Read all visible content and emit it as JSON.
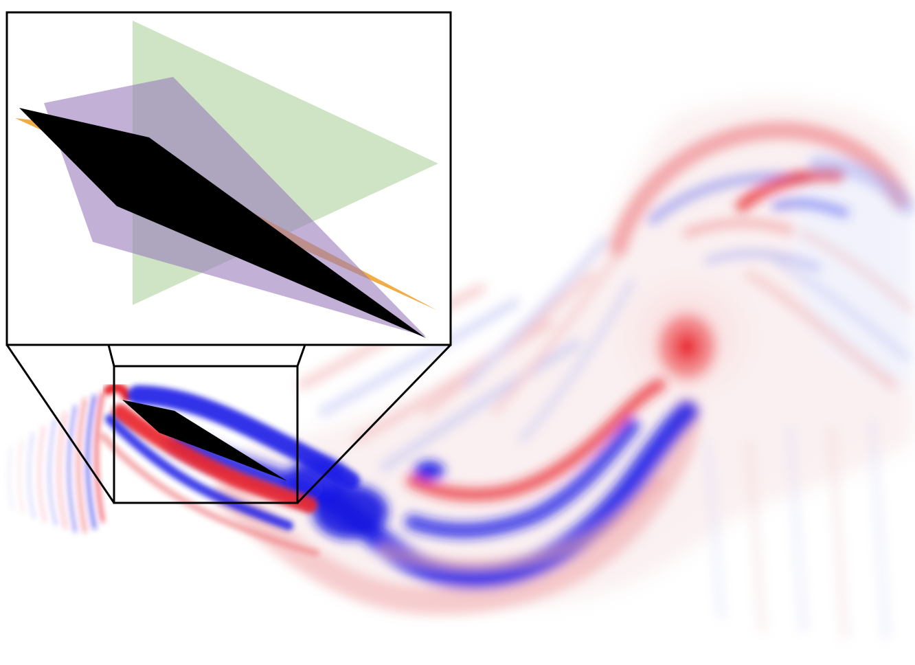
{
  "figure": {
    "kind": "vorticity-field-with-zoom-inset",
    "colors": {
      "positive": "#e8222a",
      "negative": "#1a1ae6",
      "body": "#000000",
      "frame": "#000000",
      "plane_green": "#a5cd94",
      "plane_purple": "#9a7bbc",
      "plane_orange": "#f0a83c",
      "background": "#ffffff"
    },
    "plane_opacity": {
      "green": 0.55,
      "purple": 0.6,
      "orange": 0.95
    }
  }
}
